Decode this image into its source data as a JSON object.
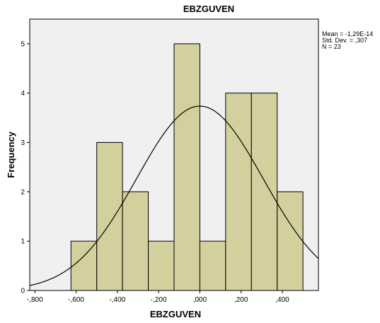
{
  "chart_data": {
    "type": "bar",
    "title": "EBZGUVEN",
    "xlabel": "EBZGUVEN",
    "ylabel": "Frequency",
    "bin_edges": [
      -0.625,
      -0.5,
      -0.375,
      -0.25,
      -0.125,
      0.0,
      0.125,
      0.25,
      0.375,
      0.5
    ],
    "values": [
      1,
      3,
      2,
      1,
      5,
      1,
      4,
      4,
      2
    ],
    "xlim": [
      -0.825,
      0.575
    ],
    "ylim": [
      0,
      5.5
    ],
    "x_ticks": [
      -0.8,
      -0.6,
      -0.4,
      -0.2,
      0.0,
      0.2,
      0.4
    ],
    "x_tick_labels": [
      "-,800",
      "-,600",
      "-,400",
      "-,200",
      ",000",
      ",200",
      ",400"
    ],
    "y_ticks": [
      0,
      1,
      2,
      3,
      4,
      5
    ],
    "y_tick_labels": [
      "0",
      "1",
      "2",
      "3",
      "4",
      "5"
    ],
    "normal_curve": {
      "mean": 0.0,
      "sd": 0.307,
      "n": 23,
      "bin_width": 0.125
    },
    "stats": [
      "Mean = -1,29E-14",
      "Std. Dev. = ,307",
      "N = 23"
    ],
    "bar_color": "#d4d09e",
    "plot_background": "#f0f0f0",
    "grid": false
  }
}
